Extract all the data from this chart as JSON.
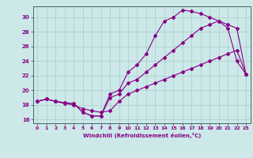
{
  "xlabel": "Windchill (Refroidissement éolien,°C)",
  "ylabel": "",
  "bg_color": "#cce8e8",
  "grid_color": "#aacccc",
  "line_color": "#880088",
  "spine_color": "#446666",
  "xlim": [
    -0.5,
    23.5
  ],
  "ylim": [
    15.5,
    31.5
  ],
  "xticks": [
    0,
    1,
    2,
    3,
    4,
    5,
    6,
    7,
    8,
    9,
    10,
    11,
    12,
    13,
    14,
    15,
    16,
    17,
    18,
    19,
    20,
    21,
    22,
    23
  ],
  "yticks": [
    16,
    18,
    20,
    22,
    24,
    26,
    28,
    30
  ],
  "curve1_x": [
    0,
    1,
    2,
    3,
    4,
    5,
    6,
    7,
    8,
    9,
    10,
    11,
    12,
    13,
    14,
    15,
    16,
    17,
    18,
    19,
    20,
    21,
    22,
    23
  ],
  "curve1_y": [
    18.5,
    18.8,
    18.5,
    18.3,
    18.2,
    17.0,
    16.5,
    16.5,
    19.5,
    20.0,
    22.5,
    23.5,
    25.0,
    27.5,
    29.5,
    30.0,
    31.0,
    30.8,
    30.5,
    30.0,
    29.5,
    28.5,
    24.0,
    22.2
  ],
  "curve2_x": [
    0,
    1,
    2,
    3,
    4,
    5,
    6,
    7,
    8,
    9,
    10,
    11,
    12,
    13,
    14,
    15,
    16,
    17,
    18,
    19,
    20,
    21,
    22,
    23
  ],
  "curve2_y": [
    18.5,
    18.8,
    18.5,
    18.3,
    18.2,
    17.0,
    16.5,
    16.5,
    19.0,
    19.5,
    21.0,
    21.5,
    22.5,
    23.5,
    24.5,
    25.5,
    26.5,
    27.5,
    28.5,
    29.0,
    29.5,
    29.0,
    28.5,
    22.2
  ],
  "curve3_x": [
    0,
    1,
    2,
    3,
    4,
    5,
    6,
    7,
    8,
    9,
    10,
    11,
    12,
    13,
    14,
    15,
    16,
    17,
    18,
    19,
    20,
    21,
    22,
    23
  ],
  "curve3_y": [
    18.5,
    18.8,
    18.5,
    18.2,
    18.0,
    17.5,
    17.2,
    17.0,
    17.2,
    18.5,
    19.5,
    20.0,
    20.5,
    21.0,
    21.5,
    22.0,
    22.5,
    23.0,
    23.5,
    24.0,
    24.5,
    25.0,
    25.5,
    22.2
  ]
}
